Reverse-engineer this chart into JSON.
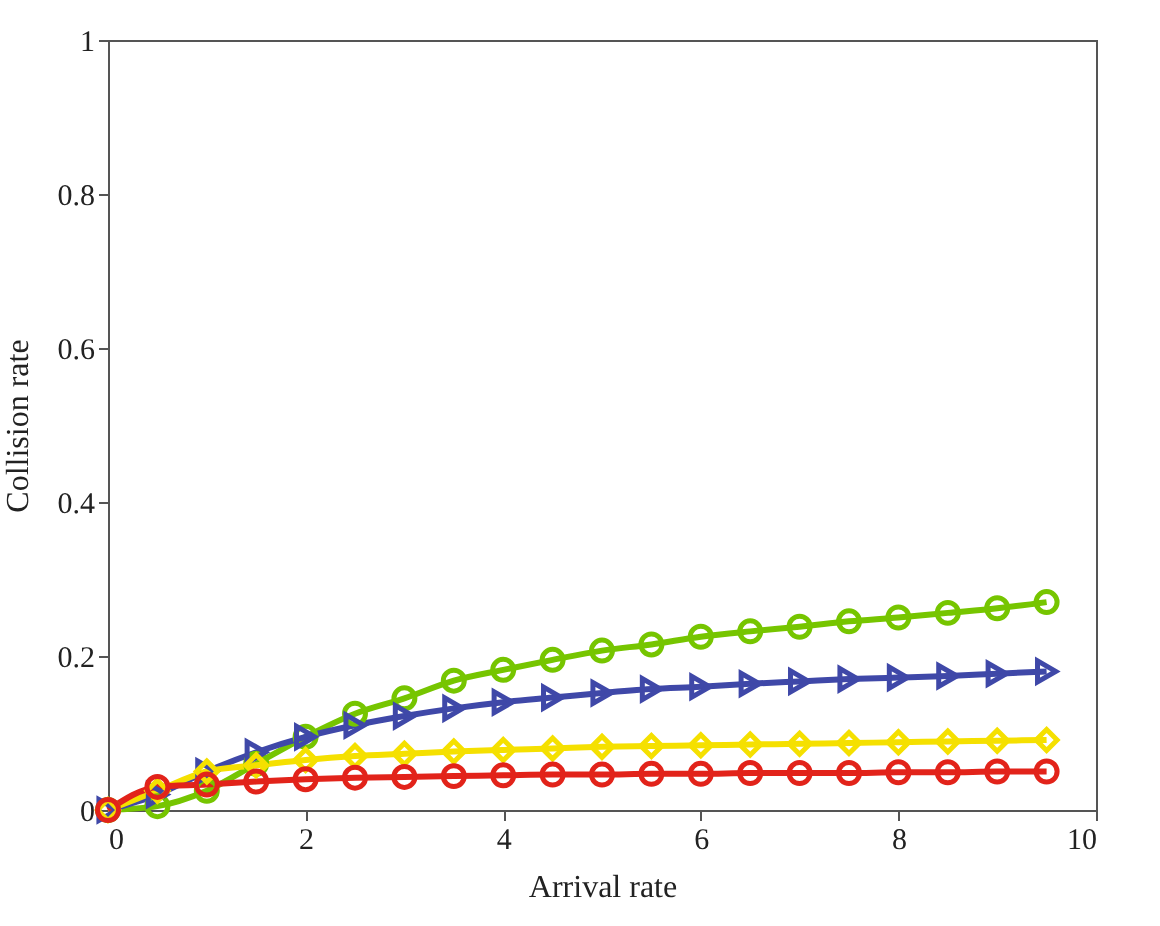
{
  "chart_data": {
    "type": "line",
    "xlabel": "Arrival rate",
    "ylabel": "Collision rate",
    "xlim": [
      0,
      10
    ],
    "xticks": [
      0,
      2,
      4,
      6,
      8,
      10
    ],
    "ylim": [
      0,
      1
    ],
    "yticks": [
      0,
      0.2,
      0.4,
      0.6,
      0.8,
      1
    ],
    "grid": false,
    "legend": false,
    "line_style": "solid",
    "x": [
      0,
      0.5,
      1,
      1.5,
      2,
      2.5,
      3,
      3.5,
      4,
      4.5,
      5,
      5.5,
      6,
      6.5,
      7,
      7.5,
      8,
      8.5,
      9,
      9.5
    ],
    "series": [
      {
        "color": "#76c500",
        "marker": "circle",
        "values": [
          0,
          0.005,
          0.025,
          0.06,
          0.095,
          0.125,
          0.145,
          0.168,
          0.182,
          0.195,
          0.207,
          0.215,
          0.225,
          0.232,
          0.238,
          0.245,
          0.25,
          0.256,
          0.262,
          0.27
        ]
      },
      {
        "color": "#3f48a8",
        "marker": "triangle",
        "values": [
          0,
          0.02,
          0.05,
          0.075,
          0.095,
          0.11,
          0.122,
          0.132,
          0.14,
          0.146,
          0.152,
          0.157,
          0.16,
          0.164,
          0.167,
          0.17,
          0.172,
          0.174,
          0.177,
          0.18
        ]
      },
      {
        "color": "#f5e000",
        "marker": "diamond",
        "values": [
          0,
          0.025,
          0.05,
          0.058,
          0.065,
          0.07,
          0.073,
          0.076,
          0.078,
          0.08,
          0.082,
          0.083,
          0.084,
          0.085,
          0.086,
          0.087,
          0.088,
          0.089,
          0.09,
          0.091
        ]
      },
      {
        "color": "#e2231a",
        "marker": "circle",
        "values": [
          0,
          0.03,
          0.033,
          0.037,
          0.04,
          0.042,
          0.043,
          0.044,
          0.045,
          0.046,
          0.046,
          0.047,
          0.047,
          0.048,
          0.048,
          0.048,
          0.049,
          0.049,
          0.05,
          0.05
        ]
      }
    ]
  }
}
